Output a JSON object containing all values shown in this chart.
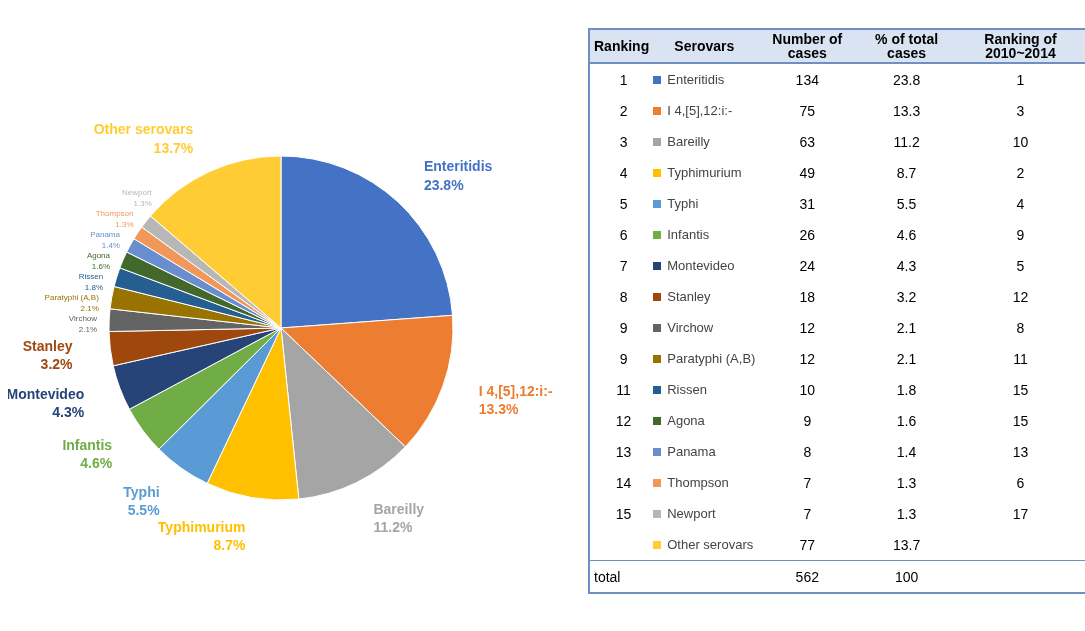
{
  "chart_data": [
    {
      "type": "pie",
      "categories": [
        "Enteritidis",
        "I 4,[5],12:i:-",
        "Bareilly",
        "Typhimurium",
        "Typhi",
        "Infantis",
        "Montevideo",
        "Stanley",
        "Virchow",
        "Paratyphi (A,B)",
        "Rissen",
        "Agona",
        "Panama",
        "Thompson",
        "Newport",
        "Other serovars"
      ],
      "values": [
        23.8,
        13.3,
        11.2,
        8.7,
        5.5,
        4.6,
        4.3,
        3.2,
        2.1,
        2.1,
        1.8,
        1.6,
        1.4,
        1.3,
        1.3,
        13.7
      ],
      "value_labels": [
        "23.8%",
        "13.3%",
        "11.2%",
        "8.7%",
        "5.5%",
        "4.6%",
        "4.3%",
        "3.2%",
        "2.1%",
        "2.1%",
        "1.8%",
        "1.6%",
        "1.4%",
        "1.3%",
        "1.3%",
        "13.7%"
      ],
      "colors": [
        "#4472c4",
        "#ed7d31",
        "#a5a5a5",
        "#ffc000",
        "#5b9bd5",
        "#70ad47",
        "#264478",
        "#9e480e",
        "#636363",
        "#997300",
        "#255e91",
        "#43682b",
        "#698ed0",
        "#f1975a",
        "#b7b7b7",
        "#ffcd33"
      ],
      "legend": false
    },
    {
      "type": "other",
      "xlabel": "Serovars",
      "data_labels": true,
      "categories": [
        "Enteritidis",
        "I 4,[5],12:i:-",
        "Bareilly",
        "Typhimurium",
        "Typhi",
        "Infantis",
        "Montevideo",
        "Stanley",
        "Virchow",
        "Paratyphi (A,B)",
        "Rissen",
        "Agona",
        "Panama",
        "Thompson",
        "Newport",
        "Other serovars",
        "total"
      ],
      "colors": [
        "#4472c4",
        "#ed7d31",
        "#a5a5a5",
        "#ffc000",
        "#5b9bd5",
        "#70ad47",
        "#264478",
        "#9e480e",
        "#636363",
        "#997300",
        "#255e91",
        "#43682b",
        "#698ed0",
        "#f1975a",
        "#b7b7b7",
        "#ffcd33",
        null
      ],
      "series": [
        {
          "name": "Ranking",
          "values": [
            1,
            2,
            3,
            4,
            5,
            6,
            7,
            8,
            9,
            9,
            11,
            12,
            13,
            14,
            15,
            null,
            null
          ]
        },
        {
          "name": "Number of cases",
          "values": [
            134,
            75,
            63,
            49,
            31,
            26,
            24,
            18,
            12,
            12,
            10,
            9,
            8,
            7,
            7,
            77,
            562
          ]
        },
        {
          "name": "% of total cases",
          "values": [
            23.8,
            13.3,
            11.2,
            8.7,
            5.5,
            4.6,
            4.3,
            3.2,
            2.1,
            2.1,
            1.8,
            1.6,
            1.4,
            1.3,
            1.3,
            13.7,
            100
          ]
        },
        {
          "name": "Ranking of 2010~2014",
          "values": [
            1,
            3,
            10,
            2,
            4,
            9,
            5,
            12,
            8,
            11,
            15,
            15,
            13,
            6,
            17,
            null,
            null
          ]
        }
      ]
    }
  ]
}
